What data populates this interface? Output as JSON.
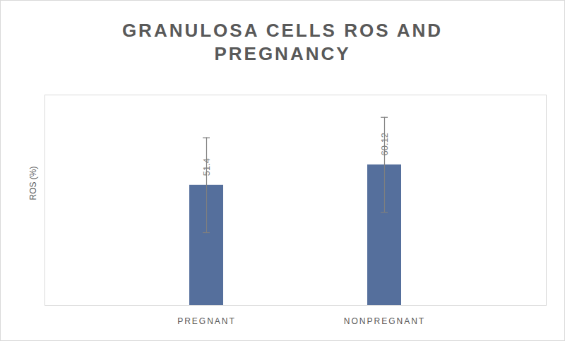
{
  "chart_data": {
    "type": "bar",
    "title": "GRANULOSA CELLS ROS AND PREGNANCY",
    "ylabel": "ROS (%)",
    "categories": [
      "PREGNANT",
      "NONPREGNANT"
    ],
    "values": [
      51.4,
      60.12
    ],
    "errors": [
      20.3,
      20.3
    ],
    "color": "#556f9c",
    "ylim": [
      0,
      90
    ],
    "yticks": [],
    "grid": false,
    "data_labels": true,
    "tick_labels": "x"
  }
}
